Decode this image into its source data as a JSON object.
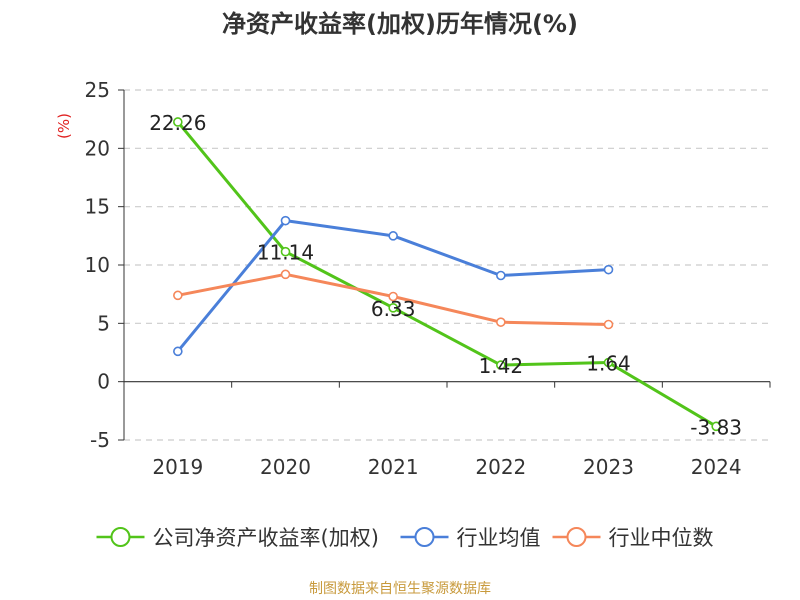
{
  "chart_data": {
    "type": "line",
    "title": "净资产收益率(加权)历年情况(%)",
    "ylabel": "(%)",
    "categories": [
      "2019",
      "2020",
      "2021",
      "2022",
      "2023",
      "2024"
    ],
    "ylim": [
      -5,
      25
    ],
    "yticks": [
      25,
      20,
      15,
      10,
      5,
      0,
      -5
    ],
    "grid": true,
    "legend_position": "bottom",
    "series": [
      {
        "name": "公司净资产收益率(加权)",
        "color": "#52c41a",
        "values": [
          22.26,
          11.14,
          6.33,
          1.42,
          1.64,
          -3.83
        ],
        "labels": [
          "22.26",
          "11.14",
          "6.33",
          "1.42",
          "1.64",
          "-3.83"
        ]
      },
      {
        "name": "行业均值",
        "color": "#4a7fd9",
        "values": [
          2.6,
          13.8,
          12.5,
          9.1,
          9.6,
          null
        ]
      },
      {
        "name": "行业中位数",
        "color": "#f5875a",
        "values": [
          7.4,
          9.2,
          7.3,
          5.1,
          4.9,
          null
        ]
      }
    ],
    "source": "制图数据来自恒生聚源数据库"
  }
}
